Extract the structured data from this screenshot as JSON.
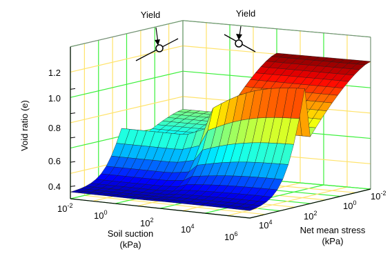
{
  "chart_data": {
    "type": "surface",
    "zlabel": "Void ratio (e)",
    "xlabel": {
      "line1": "Soil suction",
      "line2": "(kPa)"
    },
    "ylabel": {
      "line1": "Net mean stress",
      "line2": "(kPa)"
    },
    "z_ticks": [
      "0.4",
      "0.6",
      "0.8",
      "1.0",
      "1.2"
    ],
    "x_ticks": [
      {
        "base": "10",
        "exp": "-2"
      },
      {
        "base": "10",
        "exp": "0"
      },
      {
        "base": "10",
        "exp": "2"
      },
      {
        "base": "10",
        "exp": "4"
      },
      {
        "base": "10",
        "exp": "6"
      }
    ],
    "y_ticks": [
      {
        "base": "10",
        "exp": "-2"
      },
      {
        "base": "10",
        "exp": "0"
      },
      {
        "base": "10",
        "exp": "2"
      },
      {
        "base": "10",
        "exp": "4"
      }
    ],
    "annotations": [
      {
        "text": "Yield",
        "target": "suction"
      },
      {
        "text": "Yield",
        "target": "stress"
      }
    ],
    "zlim": [
      0.3,
      1.35
    ],
    "surface": {
      "void_ratio_peak": 1.35,
      "void_ratio_high_stress": 0.35,
      "void_ratio_low_suction": 0.82,
      "colormap": "jet"
    },
    "grid": true
  }
}
